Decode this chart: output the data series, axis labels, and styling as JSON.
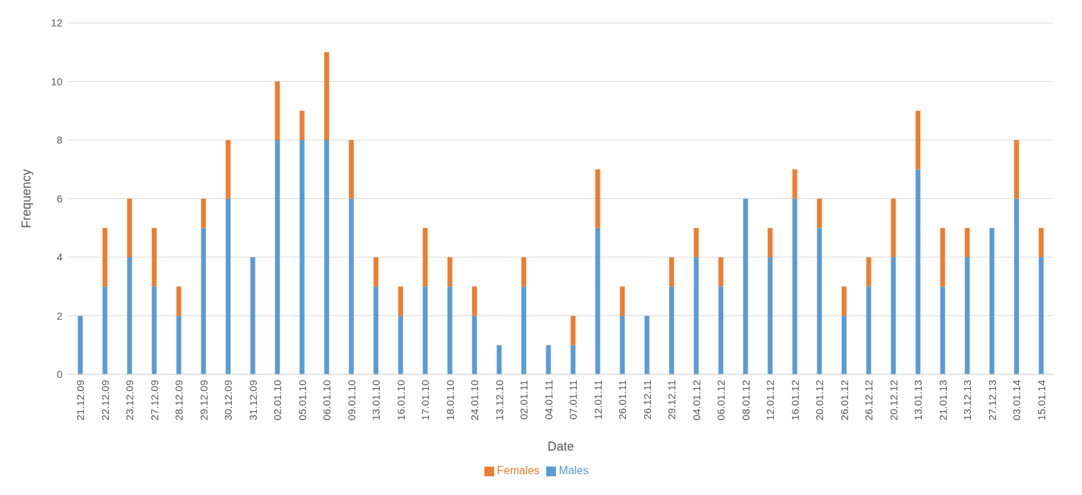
{
  "chart_data": {
    "type": "bar",
    "stacked": true,
    "xlabel": "Date",
    "ylabel": "Frequency",
    "categories": [
      "21.12.09",
      "22.12.09",
      "23.12.09",
      "27.12.09",
      "28.12.09",
      "29.12.09",
      "30.12.09",
      "31.12.09",
      "02.01.10",
      "05.01.10",
      "06.01.10",
      "09.01.10",
      "13.01.10",
      "16.01.10",
      "17.01.10",
      "18.01.10",
      "24.01.10",
      "13.12.10",
      "02.01.11",
      "04.01.11",
      "07.01.11",
      "12.01.11",
      "26.01.11",
      "26.12.11",
      "29.12.11",
      "04.01.12",
      "06.01.12",
      "08.01.12",
      "12.01.12",
      "16.01.12",
      "20.01.12",
      "26.01.12",
      "26.12.12",
      "20.12.12",
      "13.01.13",
      "21.01.13",
      "13.12.13",
      "27.12.13",
      "03.01.14",
      "15.01.14"
    ],
    "series": [
      {
        "name": "Males",
        "color": "#5b9bd5",
        "values": [
          2,
          3,
          4,
          3,
          2,
          5,
          6,
          4,
          8,
          8,
          8,
          6,
          3,
          2,
          3,
          3,
          2,
          1,
          3,
          1,
          1,
          5,
          2,
          2,
          3,
          4,
          3,
          6,
          4,
          6,
          5,
          2,
          3,
          4,
          7,
          3,
          4,
          5,
          6,
          4
        ]
      },
      {
        "name": "Females",
        "color": "#ed7d31",
        "values": [
          0,
          2,
          2,
          2,
          1,
          1,
          2,
          0,
          2,
          1,
          3,
          2,
          1,
          1,
          2,
          1,
          1,
          0,
          1,
          0,
          1,
          2,
          1,
          0,
          1,
          1,
          1,
          0,
          1,
          1,
          1,
          1,
          1,
          2,
          2,
          2,
          1,
          0,
          2,
          1
        ]
      }
    ],
    "ylim": [
      0,
      12
    ],
    "yticks": [
      0,
      2,
      4,
      6,
      8,
      10,
      12
    ],
    "grid": "y",
    "legend": "bottom"
  }
}
